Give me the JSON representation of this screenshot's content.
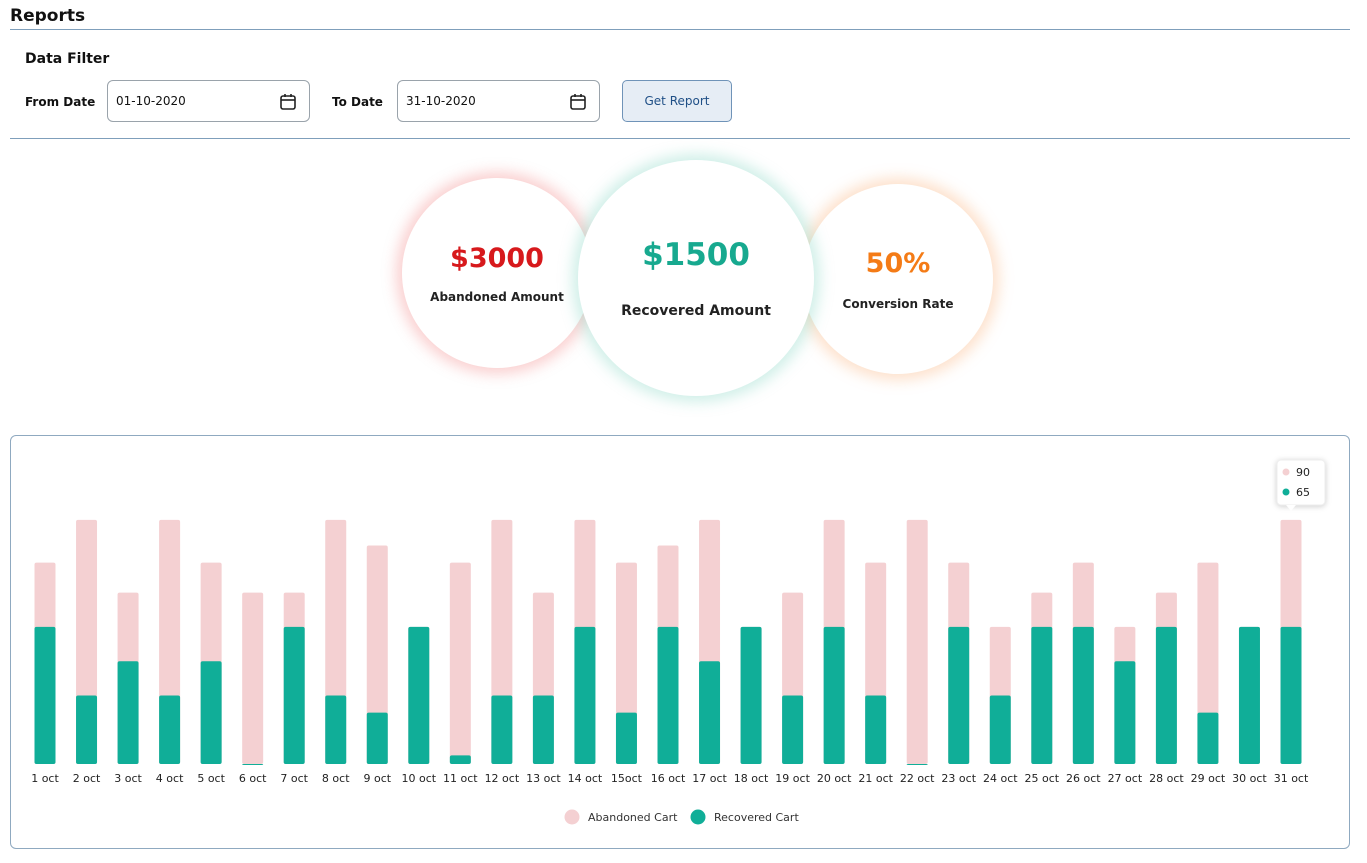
{
  "header": {
    "title": "Reports"
  },
  "filter": {
    "title": "Data Filter",
    "from_label": "From Date",
    "from_value": "01-10-2020",
    "to_label": "To Date",
    "to_value": "31-10-2020",
    "button": "Get Report"
  },
  "stats": [
    {
      "value": "$3000",
      "label": "Abandoned Amount",
      "color": "#d7191c"
    },
    {
      "value": "$1500",
      "label": "Recovered Amount",
      "color": "#17a98f"
    },
    {
      "value": "50%",
      "label": "Conversion Rate",
      "color": "#f47b16"
    }
  ],
  "chart_data": {
    "type": "bar",
    "categories": [
      "1 oct",
      "2 oct",
      "3 oct",
      "4 oct",
      "5 oct",
      "6 oct",
      "7 oct",
      "8 oct",
      "9 oct",
      "10 oct",
      "11 oct",
      "12 oct",
      "13 oct",
      "14 oct",
      "15oct",
      "16 oct",
      "17 oct",
      "18 oct",
      "19 oct",
      "20 oct",
      "21 oct",
      "22 oct",
      "23 oct",
      "24 oct",
      "25 oct",
      "26 oct",
      "27 oct",
      "28 oct",
      "29 oct",
      "30 oct",
      "31 oct"
    ],
    "series": [
      {
        "name": "Abandoned Cart",
        "color": "#f4d0d2",
        "values": [
          80,
          90,
          73,
          90,
          80,
          73,
          73,
          90,
          84,
          65,
          80,
          90,
          73,
          90,
          80,
          84,
          90,
          65,
          73,
          90,
          80,
          90,
          80,
          65,
          73,
          80,
          65,
          73,
          80,
          65,
          90
        ]
      },
      {
        "name": "Recovered Cart",
        "color": "#10ae98",
        "values": [
          65,
          49,
          57,
          49,
          57,
          33,
          65,
          49,
          45,
          65,
          35,
          49,
          49,
          65,
          45,
          65,
          57,
          65,
          49,
          65,
          49,
          33,
          65,
          49,
          65,
          65,
          57,
          65,
          45,
          65,
          65
        ]
      }
    ],
    "ylim": [
      33,
      100
    ],
    "overlap": true
  }
}
